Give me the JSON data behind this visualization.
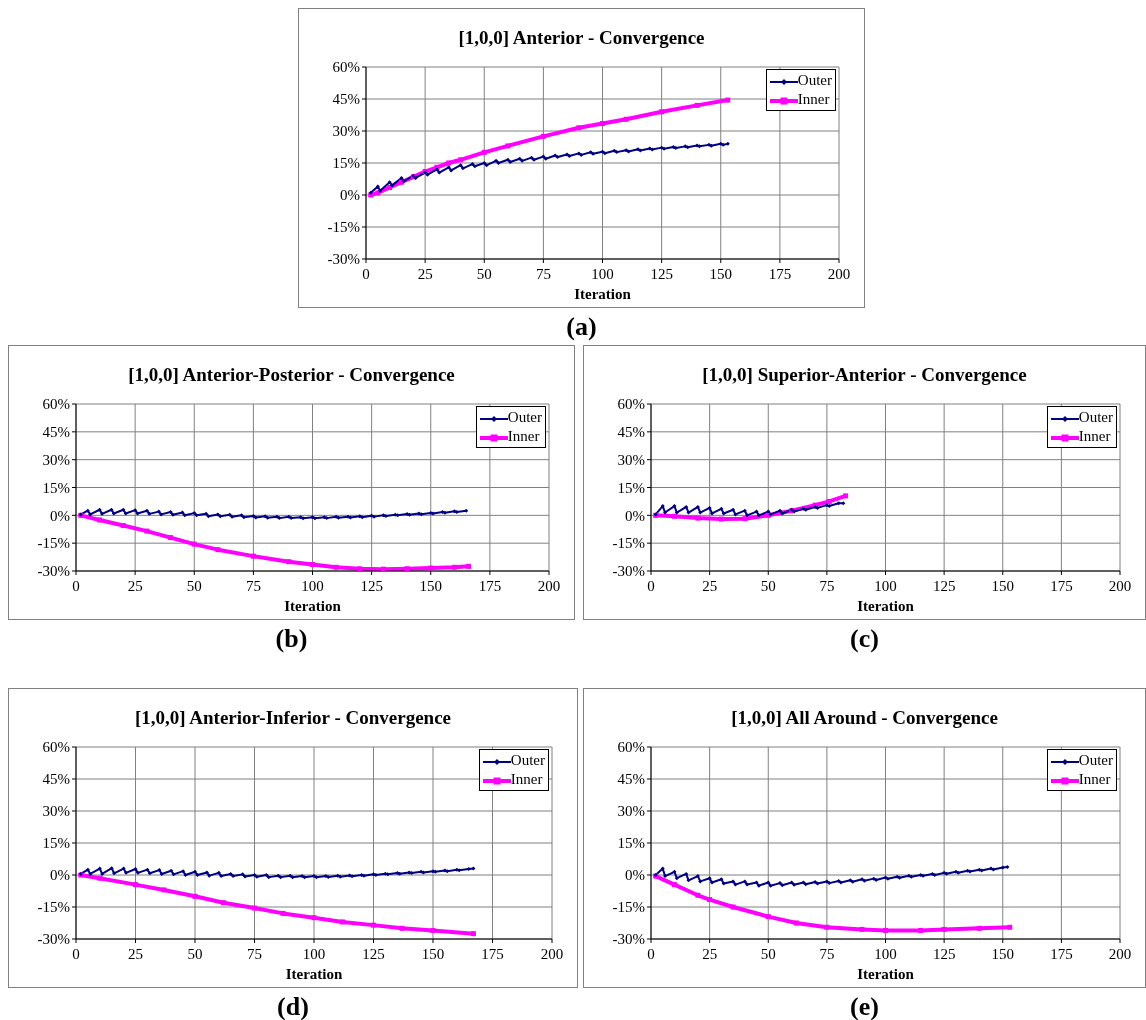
{
  "chart_data": [
    {
      "type": "line",
      "title": "[1,0,0] Anterior - Convergence",
      "xlabel": "Iteration",
      "xlim": [
        0,
        200
      ],
      "xticks": [
        0,
        25,
        50,
        75,
        100,
        125,
        150,
        175,
        200
      ],
      "ylim": [
        -30,
        60
      ],
      "yticks": [
        {
          "value": -30,
          "label": "-30%"
        },
        {
          "value": -15,
          "label": "-15%"
        },
        {
          "value": 0,
          "label": "0%"
        },
        {
          "value": 15,
          "label": "15%"
        },
        {
          "value": 30,
          "label": "30%"
        },
        {
          "value": 45,
          "label": "45%"
        },
        {
          "value": 60,
          "label": "60%"
        }
      ],
      "grid": true,
      "legend": "top right",
      "annotations": [
        "(a)"
      ],
      "series": [
        {
          "name": "Outer",
          "color": "#000080",
          "marker": "diamond",
          "x": [
            2,
            5,
            6,
            10,
            11,
            15,
            16,
            20,
            21,
            25,
            26,
            30,
            31,
            35,
            36,
            40,
            41,
            45,
            46,
            50,
            51,
            55,
            56,
            60,
            61,
            65,
            66,
            70,
            71,
            75,
            76,
            80,
            81,
            85,
            86,
            90,
            91,
            95,
            96,
            100,
            101,
            105,
            106,
            110,
            111,
            115,
            116,
            120,
            121,
            125,
            126,
            130,
            131,
            135,
            136,
            140,
            141,
            145,
            146,
            150,
            151,
            153
          ],
          "values": [
            1,
            4,
            2,
            6,
            4.5,
            8,
            6.5,
            9,
            8,
            10.5,
            9.5,
            12,
            10.5,
            13,
            11.5,
            14,
            12.5,
            14.5,
            13.5,
            15,
            14,
            16,
            15,
            16.5,
            15.5,
            17,
            16,
            17.5,
            16.5,
            18,
            17,
            18.5,
            17.8,
            19,
            18.3,
            19.5,
            18.8,
            20,
            19.3,
            20.3,
            19.6,
            20.7,
            20.1,
            21,
            20.4,
            21.4,
            20.9,
            21.8,
            21.3,
            22.2,
            21.7,
            22.5,
            22,
            22.8,
            22.4,
            23.2,
            22.8,
            23.5,
            23.1,
            24,
            23.5,
            24
          ]
        },
        {
          "name": "Inner",
          "color": "#ff00ff",
          "marker": "square",
          "x": [
            2,
            5,
            10,
            15,
            20,
            25,
            30,
            35,
            40,
            50,
            60,
            75,
            90,
            100,
            110,
            125,
            140,
            153
          ],
          "values": [
            0,
            1,
            3.5,
            6,
            8.5,
            11,
            13,
            15,
            16.5,
            20,
            23,
            27.5,
            31.5,
            33.5,
            35.5,
            39,
            42,
            44.5
          ]
        }
      ]
    },
    {
      "type": "line",
      "title": "[1,0,0] Anterior-Posterior - Convergence",
      "xlabel": "Iteration",
      "xlim": [
        0,
        200
      ],
      "xticks": [
        0,
        25,
        50,
        75,
        100,
        125,
        150,
        175,
        200
      ],
      "ylim": [
        -30,
        60
      ],
      "yticks": [
        {
          "value": -30,
          "label": "-30%"
        },
        {
          "value": -15,
          "label": "-15%"
        },
        {
          "value": 0,
          "label": "0%"
        },
        {
          "value": 15,
          "label": "15%"
        },
        {
          "value": 30,
          "label": "30%"
        },
        {
          "value": 45,
          "label": "45%"
        },
        {
          "value": 60,
          "label": "60%"
        }
      ],
      "grid": true,
      "legend": "top right",
      "annotations": [
        "(b)"
      ],
      "series": [
        {
          "name": "Outer",
          "color": "#000080",
          "marker": "diamond",
          "x": [
            2,
            5,
            6,
            10,
            11,
            15,
            16,
            20,
            21,
            25,
            26,
            30,
            31,
            35,
            36,
            40,
            41,
            45,
            46,
            50,
            51,
            55,
            56,
            60,
            61,
            65,
            66,
            70,
            71,
            75,
            76,
            80,
            81,
            85,
            86,
            90,
            91,
            95,
            96,
            100,
            101,
            105,
            106,
            110,
            111,
            115,
            116,
            120,
            121,
            125,
            126,
            130,
            131,
            135,
            136,
            140,
            141,
            145,
            146,
            150,
            151,
            155,
            156,
            160,
            161,
            165
          ],
          "values": [
            0.5,
            2.5,
            0.5,
            3,
            0.8,
            3,
            1,
            3,
            1,
            2.8,
            1,
            2.5,
            0.8,
            2,
            0.5,
            1.8,
            0.3,
            1.5,
            0,
            1.2,
            0,
            0.8,
            -0.5,
            0.5,
            -0.5,
            0.3,
            -0.8,
            0,
            -1,
            -0.3,
            -1.2,
            -0.5,
            -1.3,
            -0.7,
            -1.5,
            -0.8,
            -1.5,
            -1,
            -1.6,
            -1,
            -1.6,
            -1,
            -1.5,
            -0.8,
            -1.3,
            -0.7,
            -1.2,
            -0.5,
            -1,
            -0.2,
            -0.7,
            0,
            -0.4,
            0.3,
            0,
            0.7,
            0.3,
            1,
            0.6,
            1.3,
            1,
            1.8,
            1.4,
            2.2,
            1.8,
            2.5
          ]
        },
        {
          "name": "Inner",
          "color": "#ff00ff",
          "marker": "square",
          "x": [
            2,
            10,
            20,
            30,
            40,
            50,
            60,
            75,
            90,
            100,
            110,
            120,
            130,
            140,
            150,
            160,
            166
          ],
          "values": [
            0,
            -2.5,
            -5.5,
            -8.5,
            -12,
            -15.5,
            -18.5,
            -22,
            -25,
            -26.5,
            -28,
            -28.8,
            -29,
            -28.8,
            -28.4,
            -28,
            -27.5
          ]
        }
      ]
    },
    {
      "type": "line",
      "title": "[1,0,0] Superior-Anterior - Convergence",
      "xlabel": "Iteration",
      "xlim": [
        0,
        200
      ],
      "xticks": [
        0,
        25,
        50,
        75,
        100,
        125,
        150,
        175,
        200
      ],
      "ylim": [
        -30,
        60
      ],
      "yticks": [
        {
          "value": -30,
          "label": "-30%"
        },
        {
          "value": -15,
          "label": "-15%"
        },
        {
          "value": 0,
          "label": "0%"
        },
        {
          "value": 15,
          "label": "15%"
        },
        {
          "value": 30,
          "label": "30%"
        },
        {
          "value": 45,
          "label": "45%"
        },
        {
          "value": 60,
          "label": "60%"
        }
      ],
      "grid": true,
      "legend": "top right",
      "annotations": [
        "(c)"
      ],
      "series": [
        {
          "name": "Outer",
          "color": "#000080",
          "marker": "diamond",
          "x": [
            2,
            5,
            6,
            10,
            11,
            15,
            16,
            20,
            21,
            25,
            26,
            30,
            31,
            35,
            36,
            40,
            41,
            45,
            46,
            50,
            51,
            55,
            56,
            60,
            61,
            65,
            66,
            70,
            71,
            75,
            76,
            80,
            82
          ],
          "values": [
            0.5,
            5,
            1.5,
            5,
            1.5,
            4.5,
            1.5,
            4.5,
            1.5,
            4,
            1,
            3.5,
            1,
            3,
            0.5,
            2.5,
            0,
            2,
            0,
            2,
            0.5,
            2.5,
            1,
            3,
            2,
            3.5,
            3,
            4.5,
            4,
            5.5,
            5,
            6.5,
            6.5
          ]
        },
        {
          "name": "Inner",
          "color": "#ff00ff",
          "marker": "square",
          "x": [
            2,
            10,
            20,
            30,
            40,
            50,
            60,
            70,
            76,
            83
          ],
          "values": [
            0,
            -0.5,
            -1.5,
            -2,
            -1.8,
            0,
            2.5,
            5.5,
            7.5,
            10.5
          ]
        }
      ]
    },
    {
      "type": "line",
      "title": "[1,0,0] Anterior-Inferior - Convergence",
      "xlabel": "Iteration",
      "xlim": [
        0,
        200
      ],
      "xticks": [
        0,
        25,
        50,
        75,
        100,
        125,
        150,
        175,
        200
      ],
      "ylim": [
        -30,
        60
      ],
      "yticks": [
        {
          "value": -30,
          "label": "-30%"
        },
        {
          "value": -15,
          "label": "-15%"
        },
        {
          "value": 0,
          "label": "0%"
        },
        {
          "value": 15,
          "label": "15%"
        },
        {
          "value": 30,
          "label": "30%"
        },
        {
          "value": 45,
          "label": "45%"
        },
        {
          "value": 60,
          "label": "60%"
        }
      ],
      "grid": true,
      "legend": "top right",
      "annotations": [
        "(d)"
      ],
      "series": [
        {
          "name": "Outer",
          "color": "#000080",
          "marker": "diamond",
          "x": [
            2,
            5,
            6,
            10,
            11,
            15,
            16,
            20,
            21,
            25,
            26,
            30,
            31,
            35,
            36,
            40,
            41,
            45,
            46,
            50,
            51,
            55,
            56,
            60,
            61,
            65,
            66,
            70,
            71,
            75,
            76,
            80,
            81,
            85,
            86,
            90,
            91,
            95,
            96,
            100,
            101,
            105,
            106,
            110,
            111,
            115,
            116,
            120,
            121,
            125,
            126,
            130,
            131,
            135,
            136,
            140,
            141,
            145,
            146,
            150,
            151,
            155,
            156,
            160,
            161,
            165,
            167
          ],
          "values": [
            0.5,
            2.5,
            0.5,
            3,
            0.5,
            3.2,
            0.8,
            3,
            1,
            2.8,
            1,
            2.5,
            0.8,
            2.3,
            0.5,
            2,
            0.3,
            1.8,
            0,
            1.5,
            0,
            1.2,
            -0.3,
            1,
            -0.5,
            0.5,
            -0.5,
            0.3,
            -0.7,
            0,
            -0.8,
            0,
            -1,
            -0.3,
            -1,
            -0.3,
            -1,
            -0.5,
            -1,
            -0.5,
            -1,
            -0.5,
            -0.9,
            -0.3,
            -0.8,
            -0.2,
            -0.6,
            0,
            -0.4,
            0.3,
            0,
            0.6,
            0.3,
            0.9,
            0.6,
            1.2,
            0.9,
            1.5,
            1.2,
            1.8,
            1.5,
            2.1,
            1.8,
            2.5,
            2.2,
            2.8,
            3
          ]
        },
        {
          "name": "Inner",
          "color": "#ff00ff",
          "marker": "square",
          "x": [
            2,
            10,
            25,
            37,
            50,
            62,
            75,
            87,
            100,
            112,
            125,
            137,
            150,
            167
          ],
          "values": [
            0,
            -1.5,
            -4.5,
            -7,
            -10,
            -13,
            -15.5,
            -18,
            -20,
            -22,
            -23.5,
            -25,
            -26,
            -27.5
          ]
        }
      ]
    },
    {
      "type": "line",
      "title": "[1,0,0] All Around - Convergence",
      "xlabel": "Iteration",
      "xlim": [
        0,
        200
      ],
      "xticks": [
        0,
        25,
        50,
        75,
        100,
        125,
        150,
        175,
        200
      ],
      "ylim": [
        -30,
        60
      ],
      "yticks": [
        {
          "value": -30,
          "label": "-30%"
        },
        {
          "value": -15,
          "label": "-15%"
        },
        {
          "value": 0,
          "label": "0%"
        },
        {
          "value": 15,
          "label": "15%"
        },
        {
          "value": 30,
          "label": "30%"
        },
        {
          "value": 45,
          "label": "45%"
        },
        {
          "value": 60,
          "label": "60%"
        }
      ],
      "grid": true,
      "legend": "top right",
      "annotations": [
        "(e)"
      ],
      "series": [
        {
          "name": "Outer",
          "color": "#000080",
          "marker": "diamond",
          "x": [
            2,
            5,
            6,
            10,
            11,
            15,
            16,
            20,
            21,
            25,
            26,
            30,
            31,
            35,
            36,
            40,
            41,
            45,
            46,
            50,
            51,
            55,
            56,
            60,
            61,
            65,
            66,
            70,
            71,
            75,
            76,
            80,
            81,
            85,
            86,
            90,
            91,
            95,
            96,
            100,
            101,
            105,
            106,
            110,
            111,
            115,
            116,
            120,
            121,
            125,
            126,
            130,
            131,
            135,
            136,
            140,
            141,
            145,
            146,
            150,
            152
          ],
          "values": [
            0,
            3,
            -0.5,
            1.5,
            -1.5,
            0.5,
            -2.5,
            -0.5,
            -3,
            -1.5,
            -3.5,
            -2,
            -4,
            -3,
            -4.5,
            -3,
            -4.5,
            -3.5,
            -5,
            -3.5,
            -5,
            -3.8,
            -4.8,
            -3.5,
            -4.6,
            -3.5,
            -4.3,
            -3.3,
            -4,
            -3,
            -3.8,
            -2.8,
            -3.5,
            -2.5,
            -3.2,
            -2,
            -2.7,
            -1.7,
            -2.3,
            -1.2,
            -1.8,
            -0.8,
            -1.3,
            -0.4,
            -0.8,
            0,
            -0.4,
            0.5,
            0,
            1,
            0.6,
            1.5,
            1.1,
            2,
            1.6,
            2.5,
            2.1,
            3,
            2.6,
            3.5,
            3.8
          ]
        },
        {
          "name": "Inner",
          "color": "#ff00ff",
          "marker": "square",
          "x": [
            2,
            10,
            20,
            25,
            35,
            50,
            62,
            75,
            90,
            100,
            115,
            125,
            140,
            153
          ],
          "values": [
            -0.5,
            -4.5,
            -9.5,
            -11.5,
            -15,
            -19.5,
            -22.5,
            -24.5,
            -25.5,
            -26,
            -26,
            -25.5,
            -25,
            -24.5
          ]
        }
      ]
    }
  ]
}
